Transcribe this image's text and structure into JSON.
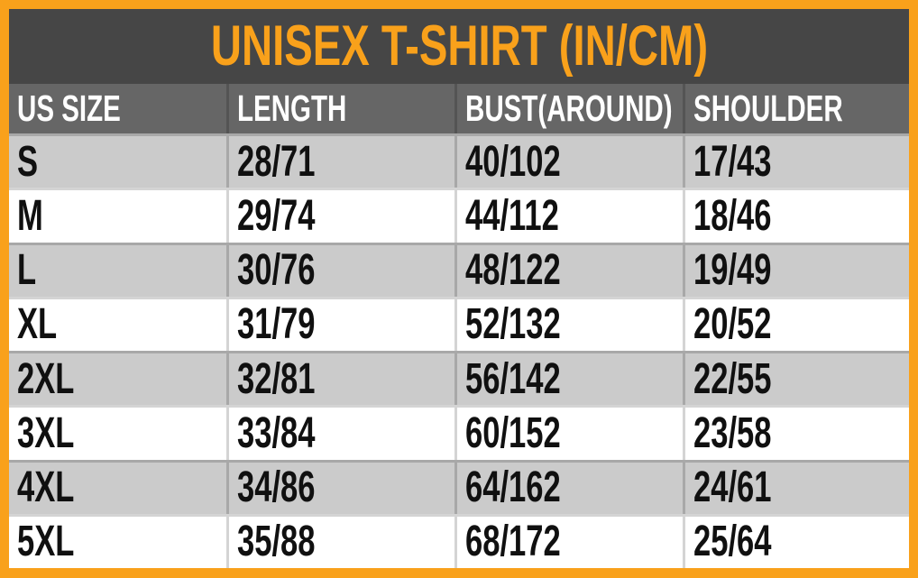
{
  "colors": {
    "frame_orange": "#F9A11B",
    "title_background": "#464646",
    "title_text": "#F9A11B",
    "header_background": "#666666",
    "header_text": "#FFFFFF",
    "row_alt_gray": "#CBCBCB",
    "row_white": "#FFFFFF",
    "cell_text": "#101010"
  },
  "chart_data": {
    "type": "table",
    "title": "UNISEX T-SHIRT (IN/CM)",
    "columns": [
      "US SIZE",
      "LENGTH",
      "BUST(AROUND)",
      "SHOULDER"
    ],
    "rows": [
      [
        "S",
        "28/71",
        "40/102",
        "17/43"
      ],
      [
        "M",
        "29/74",
        "44/112",
        "18/46"
      ],
      [
        "L",
        "30/76",
        "48/122",
        "19/49"
      ],
      [
        "XL",
        "31/79",
        "52/132",
        "20/52"
      ],
      [
        "2XL",
        "32/81",
        "56/142",
        "22/55"
      ],
      [
        "3XL",
        "33/84",
        "60/152",
        "23/58"
      ],
      [
        "4XL",
        "34/86",
        "64/162",
        "24/61"
      ],
      [
        "5XL",
        "35/88",
        "68/172",
        "25/64"
      ]
    ]
  }
}
